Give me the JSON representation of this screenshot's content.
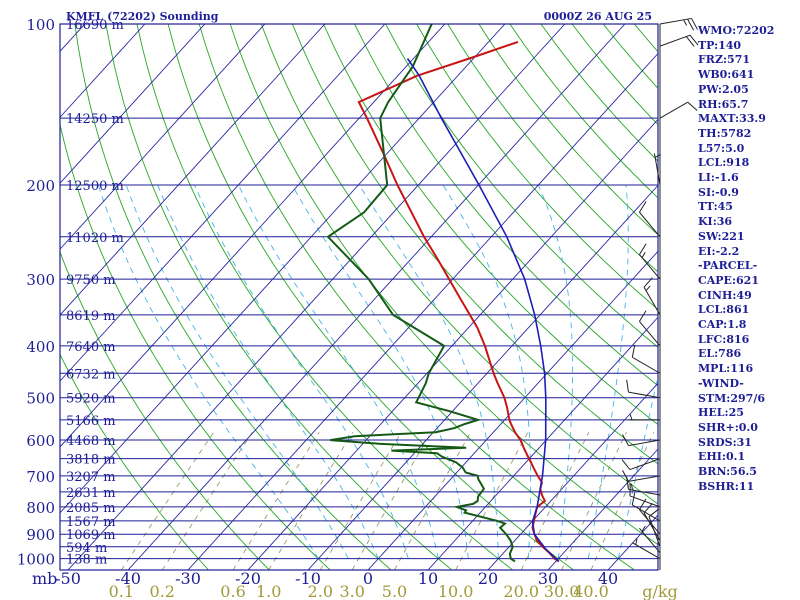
{
  "chart_data": {
    "type": "line",
    "chart_kind": "Skew-T log-P sounding",
    "title_station": "KMFL (72202) Sounding",
    "title_time": "0000Z 26 AUG 25",
    "pressure_axis_unit": "mb",
    "mixing_ratio_unit": "g/kg",
    "pressure_ticks": [
      100,
      200,
      300,
      400,
      500,
      600,
      700,
      800,
      900,
      1000
    ],
    "height_labels": [
      {
        "p": 100,
        "text": "16690 m"
      },
      {
        "p": 150,
        "text": "14250 m"
      },
      {
        "p": 200,
        "text": "12500 m"
      },
      {
        "p": 250,
        "text": "11020 m"
      },
      {
        "p": 300,
        "text": "9750 m"
      },
      {
        "p": 350,
        "text": "8619 m"
      },
      {
        "p": 400,
        "text": "7640 m"
      },
      {
        "p": 450,
        "text": "6732 m"
      },
      {
        "p": 500,
        "text": "5920 m"
      },
      {
        "p": 550,
        "text": "5166 m"
      },
      {
        "p": 600,
        "text": "4468 m"
      },
      {
        "p": 650,
        "text": "3818 m"
      },
      {
        "p": 700,
        "text": "3207 m"
      },
      {
        "p": 750,
        "text": "2631 m"
      },
      {
        "p": 800,
        "text": "2085 m"
      },
      {
        "p": 850,
        "text": "1567 m"
      },
      {
        "p": 900,
        "text": "1069 m"
      },
      {
        "p": 950,
        "text": "594 m"
      },
      {
        "p": 1000,
        "text": "138 m"
      }
    ],
    "temperature_ticks": [
      "-50",
      "-40",
      "-30",
      "-20",
      "-10",
      "0",
      "10",
      "20",
      "30",
      "40"
    ],
    "mixing_ratio_ticks": [
      "0.1",
      "0.2",
      "0.6",
      "1.0",
      "2.0",
      "3.0",
      "5.0",
      "10.0",
      "20.0",
      "30.0",
      "40.0"
    ],
    "series": [
      {
        "name": "",
        "role": "temperature",
        "color": "#c81414",
        "points": [
          [
            1012,
            30.5
          ],
          [
            1000,
            29.4
          ],
          [
            975,
            27.6
          ],
          [
            950,
            25.6
          ],
          [
            925,
            23.7
          ],
          [
            900,
            22.3
          ],
          [
            875,
            21.0
          ],
          [
            850,
            20.2
          ],
          [
            825,
            19.4
          ],
          [
            800,
            18.6
          ],
          [
            780,
            19.0
          ],
          [
            760,
            17.6
          ],
          [
            740,
            16.4
          ],
          [
            720,
            15.7
          ],
          [
            700,
            14.0
          ],
          [
            680,
            12.4
          ],
          [
            660,
            10.8
          ],
          [
            640,
            9.1
          ],
          [
            620,
            7.4
          ],
          [
            600,
            5.7
          ],
          [
            580,
            3.6
          ],
          [
            560,
            1.7
          ],
          [
            550,
            0.8
          ],
          [
            520,
            -1.6
          ],
          [
            500,
            -3.4
          ],
          [
            470,
            -6.7
          ],
          [
            450,
            -8.9
          ],
          [
            400,
            -14.5
          ],
          [
            370,
            -18.5
          ],
          [
            350,
            -21.7
          ],
          [
            325,
            -26.0
          ],
          [
            300,
            -30.6
          ],
          [
            275,
            -35.6
          ],
          [
            250,
            -41.2
          ],
          [
            225,
            -47.0
          ],
          [
            200,
            -53.5
          ],
          [
            175,
            -60.5
          ],
          [
            150,
            -68.7
          ],
          [
            140,
            -72.5
          ],
          [
            125,
            -66.8
          ],
          [
            115,
            -60.0
          ],
          [
            108,
            -55.1
          ]
        ]
      },
      {
        "name": "",
        "role": "dewpoint",
        "color": "#145a14",
        "points": [
          [
            1012,
            23.2
          ],
          [
            1000,
            22.1
          ],
          [
            980,
            21.2
          ],
          [
            950,
            20.6
          ],
          [
            925,
            19.3
          ],
          [
            900,
            17.6
          ],
          [
            875,
            15.6
          ],
          [
            860,
            15.8
          ],
          [
            850,
            14.1
          ],
          [
            820,
            7.4
          ],
          [
            812,
            7.3
          ],
          [
            800,
            5.2
          ],
          [
            790,
            7.5
          ],
          [
            780,
            7.8
          ],
          [
            765,
            7.2
          ],
          [
            740,
            7.0
          ],
          [
            710,
            4.6
          ],
          [
            700,
            4.0
          ],
          [
            690,
            1.5
          ],
          [
            675,
            0.2
          ],
          [
            660,
            -1.7
          ],
          [
            645,
            -4.8
          ],
          [
            635,
            -6.2
          ],
          [
            628,
            -14.2
          ],
          [
            620,
            -2.2
          ],
          [
            610,
            -17.0
          ],
          [
            600,
            -26.0
          ],
          [
            590,
            -22.5
          ],
          [
            580,
            -9.6
          ],
          [
            570,
            -7.1
          ],
          [
            560,
            -6.0
          ],
          [
            550,
            -4.4
          ],
          [
            530,
            -10.5
          ],
          [
            510,
            -17.4
          ],
          [
            500,
            -17.7
          ],
          [
            470,
            -18.7
          ],
          [
            450,
            -19.7
          ],
          [
            400,
            -21.3
          ],
          [
            350,
            -34.5
          ],
          [
            300,
            -44.0
          ],
          [
            250,
            -57.2
          ],
          [
            225,
            -54.9
          ],
          [
            200,
            -55.2
          ],
          [
            150,
            -66.5
          ],
          [
            140,
            -67.6
          ],
          [
            120,
            -68.9
          ],
          [
            100,
            -72.2
          ]
        ]
      },
      {
        "name": "",
        "role": "parcel",
        "color": "#1e1eb4",
        "points": [
          [
            1012,
            30.5
          ],
          [
            960,
            26.5
          ],
          [
            900,
            22.3
          ],
          [
            861,
            20.5
          ],
          [
            850,
            20.0
          ],
          [
            800,
            18.6
          ],
          [
            700,
            14.8
          ],
          [
            600,
            9.9
          ],
          [
            500,
            3.5
          ],
          [
            450,
            -0.4
          ],
          [
            400,
            -5.2
          ],
          [
            350,
            -10.9
          ],
          [
            300,
            -18.0
          ],
          [
            250,
            -27.4
          ],
          [
            200,
            -39.9
          ],
          [
            150,
            -56.3
          ],
          [
            125,
            -66.4
          ],
          [
            116,
            -71.0
          ]
        ]
      }
    ],
    "wind_barbs": [
      {
        "p": 1000,
        "dir": 300,
        "kt": 5
      },
      {
        "p": 975,
        "dir": 320,
        "kt": 5
      },
      {
        "p": 950,
        "dir": 340,
        "kt": 10
      },
      {
        "p": 925,
        "dir": 330,
        "kt": 10
      },
      {
        "p": 900,
        "dir": 320,
        "kt": 10
      },
      {
        "p": 850,
        "dir": 300,
        "kt": 10
      },
      {
        "p": 800,
        "dir": 290,
        "kt": 10
      },
      {
        "p": 760,
        "dir": 280,
        "kt": 15
      },
      {
        "p": 700,
        "dir": 260,
        "kt": 10
      },
      {
        "p": 650,
        "dir": 250,
        "kt": 10
      },
      {
        "p": 600,
        "dir": 260,
        "kt": 10
      },
      {
        "p": 550,
        "dir": 270,
        "kt": 5
      },
      {
        "p": 500,
        "dir": 280,
        "kt": 10
      },
      {
        "p": 450,
        "dir": 300,
        "kt": 10
      },
      {
        "p": 400,
        "dir": 320,
        "kt": 10
      },
      {
        "p": 350,
        "dir": 330,
        "kt": 15
      },
      {
        "p": 300,
        "dir": 320,
        "kt": 15
      },
      {
        "p": 250,
        "dir": 320,
        "kt": 10
      },
      {
        "p": 200,
        "dir": 350,
        "kt": 5
      },
      {
        "p": 150,
        "dir": 60,
        "kt": 10
      },
      {
        "p": 110,
        "dir": 70,
        "kt": 20
      },
      {
        "p": 100,
        "dir": 80,
        "kt": 25
      }
    ],
    "indices": [
      "WMO:72202",
      "TP:140",
      "FRZ:571",
      "WB0:641",
      "PW:2.05",
      "RH:65.7",
      "MAXT:33.9",
      "TH:5782",
      "L57:5.0",
      "LCL:918",
      "LI:-1.6",
      "SI:-0.9",
      "TT:45",
      "KI:36",
      "SW:221",
      "EI:-2.2",
      "-PARCEL-",
      "CAPE:621",
      "CINH:49",
      "LCL:861",
      "CAP:1.8",
      "LFC:816",
      "EL:786",
      "MPL:116",
      "-WIND-",
      "STM:297/6",
      "HEL:25",
      "SHR+:0.0",
      "SRDS:31",
      "EHI:0.1",
      "BRN:56.5",
      "BSHR:11"
    ]
  },
  "colors": {
    "frame": "#1e1e96",
    "isobar": "#1e1e96",
    "isotherm": "#2828a0",
    "dry_adiabat": "#26a626",
    "moist_adiabat": "#46b4e6",
    "mixing_ratio": "#9a9a6a",
    "mix_label": "#a09a3a",
    "label": "#1e1e96"
  }
}
